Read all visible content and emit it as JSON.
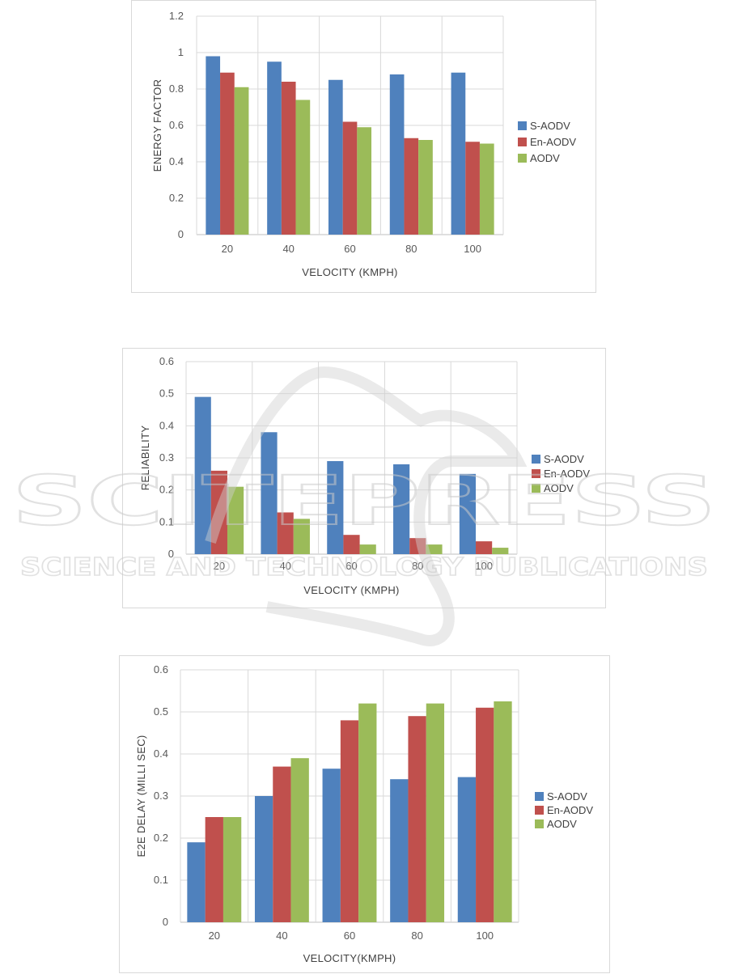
{
  "colors": {
    "s_aodv": "#4f81bd",
    "en_aodv": "#c0504d",
    "aodv": "#9bbb59",
    "grid": "#d9d9d9",
    "axis": "#bfbfbf"
  },
  "watermark": {
    "main": "SCITEPRESS",
    "sub": "SCIENCE AND TECHNOLOGY PUBLICATIONS"
  },
  "chart_data": [
    {
      "type": "bar",
      "categories": [
        "20",
        "40",
        "60",
        "80",
        "100"
      ],
      "series": [
        {
          "name": "S-AODV",
          "values": [
            0.98,
            0.95,
            0.85,
            0.88,
            0.89
          ]
        },
        {
          "name": "En-AODV",
          "values": [
            0.89,
            0.84,
            0.62,
            0.53,
            0.51
          ]
        },
        {
          "name": "AODV",
          "values": [
            0.81,
            0.74,
            0.59,
            0.52,
            0.5
          ]
        }
      ],
      "title": "",
      "xlabel": "VELOCITY (KMPH)",
      "ylabel": "ENERGY FACTOR",
      "ylim": [
        0,
        1.2
      ],
      "yticks": [
        "0",
        "0.2",
        "0.4",
        "0.6",
        "0.8",
        "1",
        "1.2"
      ],
      "grid": true,
      "legend": "right"
    },
    {
      "type": "bar",
      "categories": [
        "20",
        "40",
        "60",
        "80",
        "100"
      ],
      "series": [
        {
          "name": "S-AODV",
          "values": [
            0.49,
            0.38,
            0.29,
            0.28,
            0.25
          ]
        },
        {
          "name": "En-AODV",
          "values": [
            0.26,
            0.13,
            0.06,
            0.05,
            0.04
          ]
        },
        {
          "name": "AODV",
          "values": [
            0.21,
            0.11,
            0.03,
            0.03,
            0.02
          ]
        }
      ],
      "title": "",
      "xlabel": "VELOCITY (KMPH)",
      "ylabel": "RELIABILITY",
      "ylim": [
        0,
        0.6
      ],
      "yticks": [
        "0",
        "0.1",
        "0.2",
        "0.3",
        "0.4",
        "0.5",
        "0.6"
      ],
      "grid": true,
      "legend": "right"
    },
    {
      "type": "bar",
      "categories": [
        "20",
        "40",
        "60",
        "80",
        "100"
      ],
      "series": [
        {
          "name": "S-AODV",
          "values": [
            0.19,
            0.3,
            0.365,
            0.34,
            0.345
          ]
        },
        {
          "name": "En-AODV",
          "values": [
            0.25,
            0.37,
            0.48,
            0.49,
            0.51
          ]
        },
        {
          "name": "AODV",
          "values": [
            0.25,
            0.39,
            0.52,
            0.52,
            0.525
          ]
        }
      ],
      "title": "",
      "xlabel": "VELOCITY(KMPH)",
      "ylabel": "E2E DELAY (MILLI SEC)",
      "ylim": [
        0,
        0.6
      ],
      "yticks": [
        "0",
        "0.1",
        "0.2",
        "0.3",
        "0.4",
        "0.5",
        "0.6"
      ],
      "grid": true,
      "legend": "right"
    }
  ]
}
